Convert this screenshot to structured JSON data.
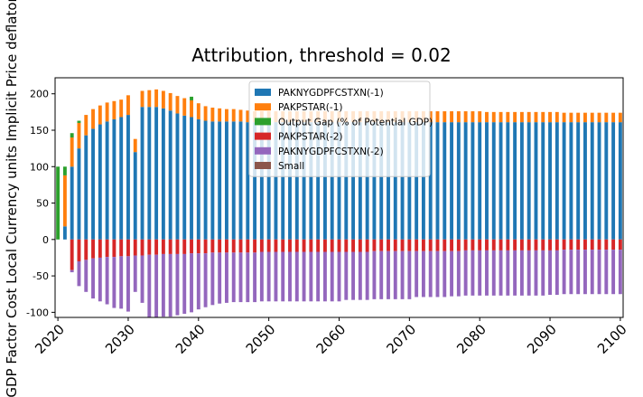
{
  "chart_data": {
    "type": "bar",
    "stacked": true,
    "title": "Attribution, threshold = 0.02",
    "ylabel": "GDP Factor Cost Local Currency units Implicit Price deflator",
    "xlabel": "",
    "ylim": [
      -107,
      222
    ],
    "xlim": [
      2019.6,
      2100.4
    ],
    "x_ticks": [
      2020,
      2030,
      2040,
      2050,
      2060,
      2070,
      2080,
      2090,
      2100
    ],
    "y_ticks": [
      -100,
      -50,
      0,
      50,
      100,
      150,
      200
    ],
    "legend_position": "top-center",
    "years": [
      2020,
      2021,
      2022,
      2023,
      2024,
      2025,
      2026,
      2027,
      2028,
      2029,
      2030,
      2031,
      2032,
      2033,
      2034,
      2035,
      2036,
      2037,
      2038,
      2039,
      2040,
      2041,
      2042,
      2043,
      2044,
      2045,
      2046,
      2047,
      2048,
      2049,
      2050,
      2051,
      2052,
      2053,
      2054,
      2055,
      2056,
      2057,
      2058,
      2059,
      2060,
      2061,
      2062,
      2063,
      2064,
      2065,
      2066,
      2067,
      2068,
      2069,
      2070,
      2071,
      2072,
      2073,
      2074,
      2075,
      2076,
      2077,
      2078,
      2079,
      2080,
      2081,
      2082,
      2083,
      2084,
      2085,
      2086,
      2087,
      2088,
      2089,
      2090,
      2091,
      2092,
      2093,
      2094,
      2095,
      2096,
      2097,
      2098,
      2099,
      2100
    ],
    "series": [
      {
        "name": "PAKNYGDPFCSTXN(-1)",
        "color": "#1f77b4",
        "values": [
          0,
          18,
          100,
          125,
          143,
          152,
          158,
          162,
          165,
          168,
          171,
          120,
          182,
          182,
          182,
          180,
          177,
          173,
          170,
          168,
          165,
          163,
          162,
          162,
          162,
          162,
          162,
          161,
          161,
          161,
          161,
          161,
          161,
          161,
          161,
          161,
          161,
          161,
          161,
          161,
          161,
          161,
          161,
          161,
          161,
          161,
          161,
          161,
          161,
          161,
          161,
          161,
          161,
          161,
          161,
          161,
          161,
          161,
          161,
          161,
          161,
          161,
          161,
          161,
          161,
          161,
          161,
          161,
          161,
          161,
          161,
          161,
          161,
          161,
          161,
          161,
          161,
          161,
          161,
          161,
          161
        ]
      },
      {
        "name": "PAKPSTAR(-1)",
        "color": "#ff7f0e",
        "values": [
          0,
          70,
          40,
          35,
          28,
          27,
          26,
          26,
          25,
          24,
          27,
          18,
          22,
          23,
          24,
          24,
          24,
          24,
          24,
          23,
          22,
          20,
          19,
          18,
          17,
          17,
          16,
          16,
          15,
          15,
          15,
          15,
          15,
          15,
          15,
          15,
          15,
          15,
          15,
          15,
          15,
          15,
          15,
          15,
          15,
          15,
          15,
          15,
          15,
          15,
          15,
          15,
          15,
          15,
          15,
          15,
          15,
          15,
          15,
          15,
          15,
          14,
          14,
          14,
          14,
          14,
          14,
          14,
          14,
          14,
          14,
          14,
          13,
          13,
          13,
          13,
          13,
          13,
          13,
          13,
          13
        ]
      },
      {
        "name": "Output Gap (% of Potential GDP)",
        "color": "#2ca02c",
        "values": [
          100,
          12,
          6,
          3,
          0,
          0,
          0,
          0,
          0,
          0,
          0,
          0,
          0,
          0,
          0,
          0,
          0,
          0,
          0,
          5,
          0,
          0,
          0,
          0,
          0,
          0,
          0,
          0,
          0,
          0,
          0,
          0,
          0,
          0,
          0,
          0,
          0,
          0,
          0,
          0,
          0,
          0,
          0,
          0,
          0,
          0,
          0,
          0,
          0,
          0,
          0,
          0,
          0,
          0,
          0,
          0,
          0,
          0,
          0,
          0,
          0,
          0,
          0,
          0,
          0,
          0,
          0,
          0,
          0,
          0,
          0,
          0,
          0,
          0,
          0,
          0,
          0,
          0,
          0,
          0,
          0
        ]
      },
      {
        "name": "PAKPSTAR(-2)",
        "color": "#d62728",
        "values": [
          0,
          0,
          -42,
          -30,
          -28,
          -26,
          -25,
          -24,
          -24,
          -23,
          -23,
          -22,
          -22,
          -21,
          -21,
          -20,
          -20,
          -20,
          -20,
          -19,
          -19,
          -19,
          -18,
          -18,
          -18,
          -18,
          -18,
          -18,
          -18,
          -17,
          -17,
          -17,
          -17,
          -17,
          -17,
          -17,
          -17,
          -17,
          -17,
          -17,
          -17,
          -17,
          -17,
          -17,
          -17,
          -16,
          -16,
          -16,
          -16,
          -16,
          -16,
          -16,
          -16,
          -16,
          -16,
          -16,
          -16,
          -16,
          -15,
          -15,
          -15,
          -15,
          -15,
          -15,
          -15,
          -15,
          -15,
          -15,
          -15,
          -15,
          -15,
          -15,
          -14,
          -14,
          -14,
          -14,
          -14,
          -14,
          -14,
          -14,
          -14
        ]
      },
      {
        "name": "PAKNYGDPFCSTXN(-2)",
        "color": "#9467bd",
        "values": [
          0,
          0,
          -3,
          -34,
          -44,
          -55,
          -60,
          -65,
          -70,
          -72,
          -76,
          -50,
          -65,
          -87,
          -86,
          -86,
          -86,
          -84,
          -82,
          -81,
          -77,
          -74,
          -72,
          -70,
          -69,
          -68,
          -68,
          -68,
          -68,
          -68,
          -68,
          -68,
          -68,
          -68,
          -68,
          -68,
          -68,
          -68,
          -68,
          -68,
          -68,
          -66,
          -66,
          -66,
          -66,
          -66,
          -66,
          -66,
          -66,
          -66,
          -66,
          -63,
          -63,
          -63,
          -63,
          -63,
          -62,
          -62,
          -62,
          -62,
          -62,
          -62,
          -62,
          -62,
          -62,
          -62,
          -62,
          -62,
          -62,
          -62,
          -61,
          -61,
          -61,
          -61,
          -61,
          -61,
          -61,
          -61,
          -61,
          -61,
          -61
        ]
      },
      {
        "name": "Small",
        "color": "#8c564b",
        "values": [
          0,
          0,
          0,
          0,
          0,
          0,
          0,
          0,
          0,
          0,
          0,
          0,
          0,
          0,
          0,
          0,
          0,
          0,
          0,
          0,
          0,
          0,
          0,
          0,
          0,
          0,
          0,
          0,
          0,
          0,
          0,
          0,
          0,
          0,
          0,
          0,
          0,
          0,
          0,
          0,
          0,
          0,
          0,
          0,
          0,
          0,
          0,
          0,
          0,
          0,
          0,
          0,
          0,
          0,
          0,
          0,
          0,
          0,
          0,
          0,
          0,
          0,
          0,
          0,
          0,
          0,
          0,
          0,
          0,
          0,
          0,
          0,
          0,
          0,
          0,
          0,
          0,
          0,
          0,
          0,
          0
        ]
      }
    ]
  }
}
